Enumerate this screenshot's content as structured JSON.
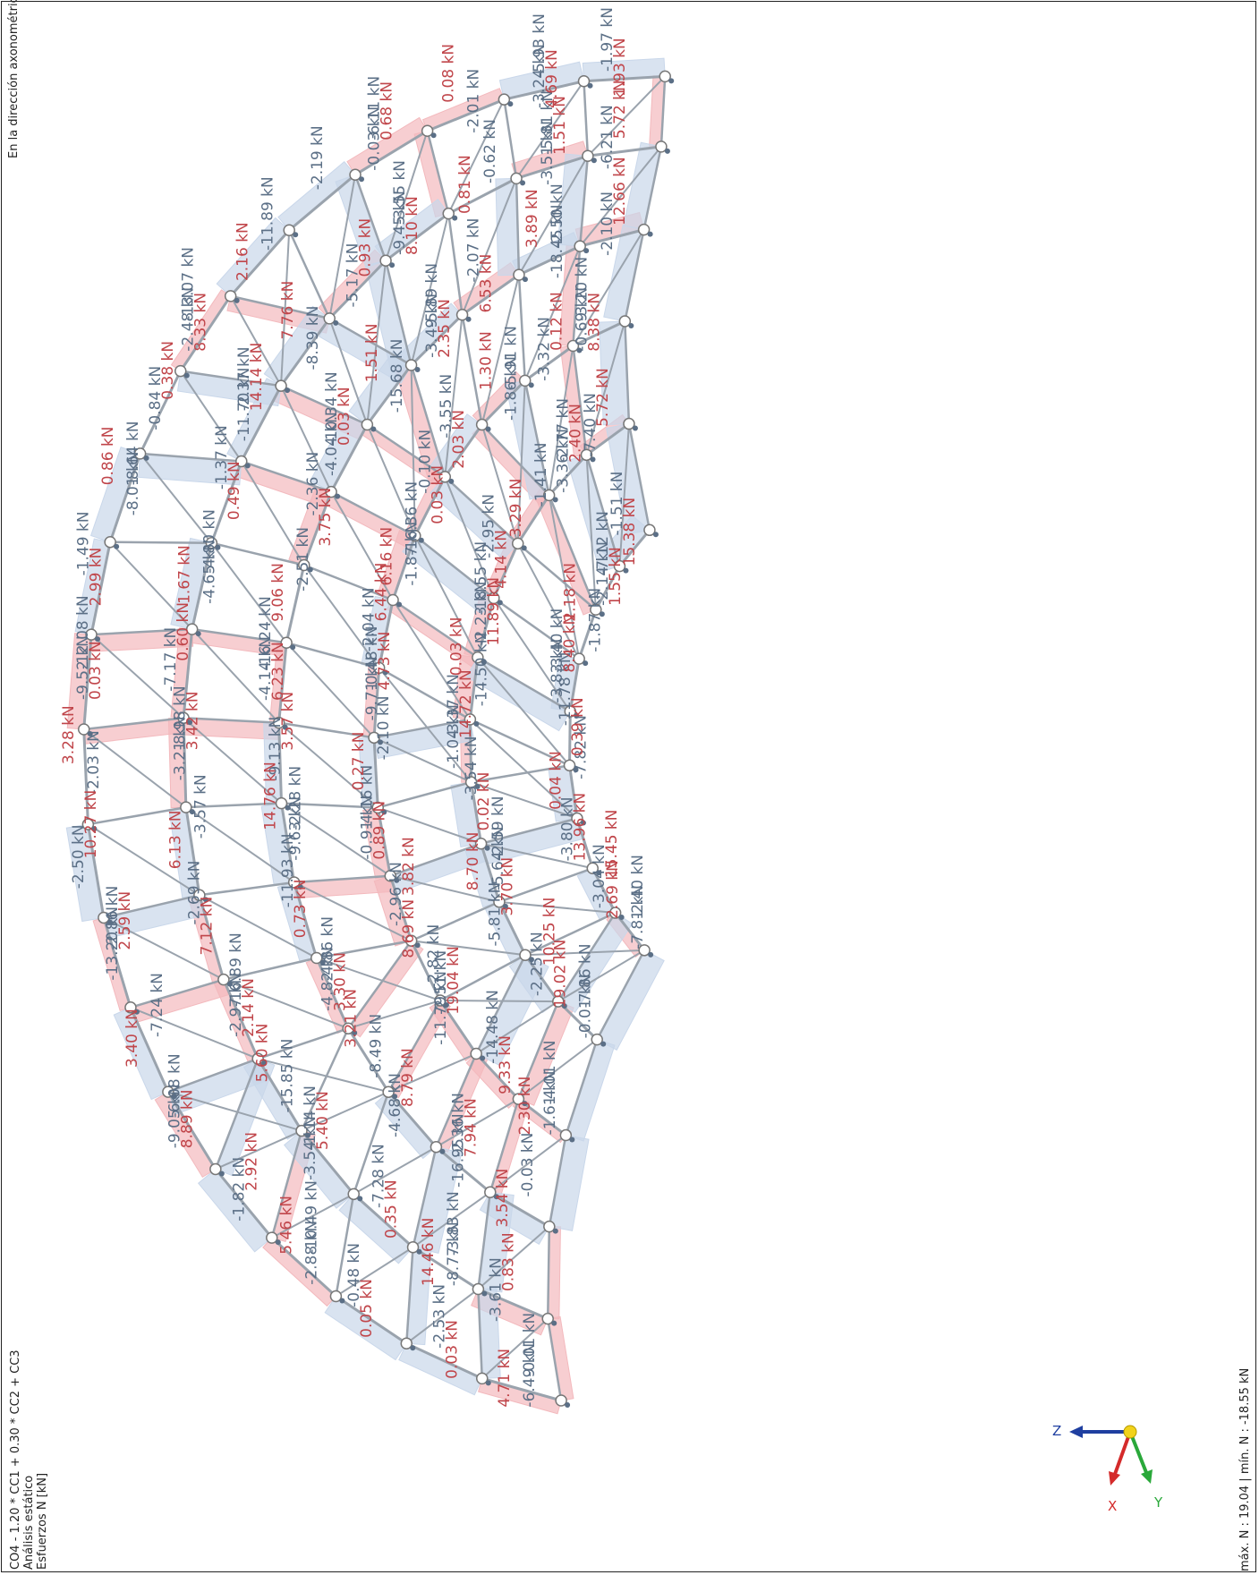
{
  "header": {
    "view_direction": "En la dirección axonométrica",
    "combination": "CO4 - 1.20 * CC1 + 0.30 * CC2 + CC3",
    "analysis": "Análisis estático",
    "result_type": "Esfuerzos N [kN]"
  },
  "footer": {
    "extremes": "máx. N : 19.04 | mín. N : -18.55 kN"
  },
  "axes": {
    "z": "Z",
    "x": "X",
    "y": "Y"
  },
  "colors": {
    "compression": "#5b6f86",
    "tension": "#c0454a",
    "compression_fill": "#c9d7ea",
    "tension_fill": "#f3b9bd",
    "member": "#9aa3ad",
    "axis_z": "#1f3fa0",
    "axis_x": "#d42a2a",
    "axis_y": "#2aa83a",
    "origin": "#f2d21b"
  },
  "labels": {
    "compression": [
      "-6.11 kN",
      "-9.52 kN",
      "-10.49 kN",
      "-9.45 kN",
      "-8.98 kN",
      "-8.77 kN",
      "-10.34 kN",
      "-4.82 kN",
      "-5.91 kN",
      "-0.91 kN",
      "-2.77 kN",
      "-5.64 kN",
      "-3.40 kN",
      "-3.24 kN",
      "-8.64 kN",
      "-9.05 kN",
      "-5.81 kN",
      "-4.65 kN",
      "-1.14 kN",
      "-3.49 kN",
      "-2.28 kN",
      "-0.69 kN",
      "-0.48 kN",
      "-1.61 kN",
      "-3.37 kN",
      "-2.14 kN",
      "-2.40 kN",
      "-2.48 kN",
      "-2.86 kN",
      "-6.49 kN",
      "-2.37 kN",
      "-2.97 kN",
      "-2.50 kN",
      "-4.14 kN",
      "-2.36 kN",
      "-1.87 kN",
      "-2.51 kN",
      "-2.23 kN",
      "-7.86 kN",
      "-3.80 kN",
      "-2.19 kN",
      "-2.03 kN",
      "-0.48 kN",
      "-5.17 kN",
      "-3.57 kN",
      "-3.61 kN",
      "-2.36 kN",
      "-8.49 kN",
      "-3.55 kN",
      "-2.96 kN",
      "-1.41 kN",
      "-5.81 kN",
      "-11.78 kN",
      "-2.01 kN",
      "-1.49 kN",
      "-1.82 kN",
      "-0.62 kN",
      "-7.17 kN",
      "-7.28 kN",
      "-15.68 kN",
      "-11.93 kN",
      "-3.32 kN",
      "-2.10 kN",
      "-7.40 kN",
      "-3.54 kN",
      "-1.87 kN",
      "-1.97 kN",
      "-0.84 kN",
      "-7.24 kN",
      "-6.21 kN",
      "-1.37 kN",
      "-15.85 kN",
      "-2.07 kN",
      "-9.13 kN",
      "-0.03 kN",
      "-2.04 kN",
      "-14.48 kN",
      "-14.50 kN",
      "-1.51 kN",
      "-3.04 kN",
      "-11.89 kN",
      "-2.50 kN",
      "-2.53 kN",
      "-8.39 kN",
      "-2.69 kN",
      "-2.10 kN",
      "-2.51 kN",
      "-4.68 kN",
      "-0.10 kN",
      "-2.82 kN",
      "-2.95 kN",
      "-2.25 kN",
      "-7.82 kN",
      "-0.03 kN",
      "-12.08 kN",
      "-2.88 kN",
      "-3.55 kN",
      "-3.21 kN",
      "-3.83 kN",
      "-4.04 kN",
      "-4.86 kN",
      "-1.86 kN",
      "-4.16 kN",
      "-3.36 kN",
      "-2.59 kN",
      "-3.83 kN",
      "-5.93 kN",
      "-8.01 kN",
      "-6.08 kN",
      "-3.51 kN",
      "-4.80 kN",
      "-3.54 kN",
      "-5.89 kN",
      "-9.63 kN",
      "-3.20 kN",
      "-9.71 kN",
      "-4.01 kN",
      "-1.04 kN",
      "-7.12 kN",
      "-7.81 kN",
      "-13.07 kN",
      "-13.20 kN",
      "-0.01 kN",
      "-11.70 kN",
      "-16.89 kN",
      "-18.45 kN",
      "-16.24 kN",
      "-16.95 kN",
      "-16.36 kN",
      "-11.79 kN",
      "-18.55 kN",
      "-0.01 kN"
    ],
    "tension": [
      "3.28 kN",
      "0.05 kN",
      "0.93 kN",
      "6.13 kN",
      "0.83 kN",
      "3.75 kN",
      "3.21 kN",
      "2.03 kN",
      "3.82 kN",
      "3.29 kN",
      "3.70 kN",
      "0.39 kN",
      "0.08 kN",
      "2.99 kN",
      "2.92 kN",
      "0.81 kN",
      "0.60 kN",
      "0.35 kN",
      "1.51 kN",
      "0.73 kN",
      "0.12 kN",
      "0.27 kN",
      "5.72 kN",
      "0.02 kN",
      "2.18 kN",
      "1.93 kN",
      "0.38 kN",
      "3.40 kN",
      "5.72 kN",
      "0.49 kN",
      "5.60 kN",
      "6.53 kN",
      "3.57 kN",
      "3.54 kN",
      "6.44 kN",
      "9.33 kN",
      "0.03 kN",
      "15.38 kN",
      "15.45 kN",
      "2.16 kN",
      "10.27 kN",
      "0.03 kN",
      "7.76 kN",
      "7.12 kN",
      "12.66 kN",
      "9.06 kN",
      "8.79 kN",
      "0.03 kN",
      "8.69 kN",
      "4.14 kN",
      "10.25 kN",
      "0.04 kN",
      "0.68 kN",
      "0.03 kN",
      "5.46 kN",
      "8.10 kN",
      "3.42 kN",
      "14.46 kN",
      "0.03 kN",
      "3.30 kN",
      "1.30 kN",
      "0.89 kN",
      "2.40 kN",
      "8.70 kN",
      "8.40 kN",
      "4.69 kN",
      "0.86 kN",
      "8.89 kN",
      "1.51 kN",
      "1.67 kN",
      "5.40 kN",
      "2.35 kN",
      "14.76 kN",
      "8.38 kN",
      "4.73 kN",
      "2.30 kN",
      "14.72 kN",
      "1.55 kN",
      "2.69 kN",
      "8.33 kN",
      "2.59 kN",
      "4.71 kN",
      "14.14 kN",
      "2.14 kN",
      "3.89 kN",
      "6.23 kN",
      "7.94 kN",
      "6.16 kN",
      "19.04 kN",
      "11.89 kN",
      "19.02 kN",
      "13.96 kN"
    ]
  }
}
